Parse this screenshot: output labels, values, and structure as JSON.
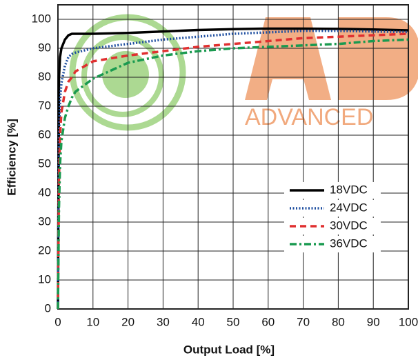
{
  "chart_data": {
    "type": "line",
    "xlabel": "Output Load [%]",
    "ylabel": "Efficiency [%]",
    "watermark": "ADVANCED",
    "x": [
      0,
      0.3,
      0.6,
      1,
      2,
      3,
      4,
      5,
      10,
      20,
      30,
      40,
      50,
      60,
      70,
      80,
      90,
      100
    ],
    "series": [
      {
        "name": "18VDC",
        "color": "#000000",
        "style": "solid",
        "values": [
          0,
          80,
          87,
          90,
          93,
          94.5,
          95,
          95,
          95,
          95.3,
          95.8,
          96.3,
          96.6,
          96.8,
          96.8,
          96.7,
          96.5,
          96.2
        ]
      },
      {
        "name": "24VDC",
        "color": "#1f4fa0",
        "style": "dotted",
        "values": [
          0,
          60,
          72,
          78,
          84,
          87,
          88,
          88.5,
          90,
          91.5,
          93,
          94,
          95,
          95.5,
          96,
          96,
          95.8,
          95.6
        ]
      },
      {
        "name": "30VDC",
        "color": "#e03030",
        "style": "dashed",
        "values": [
          0,
          45,
          60,
          68,
          75,
          78.5,
          80,
          82,
          85.5,
          87.5,
          89,
          90.5,
          91.5,
          92.5,
          93.5,
          94,
          94.5,
          95
        ]
      },
      {
        "name": "36VDC",
        "color": "#1a9a50",
        "style": "dashdot",
        "values": [
          0,
          35,
          50,
          58,
          66,
          70,
          73,
          75,
          79.5,
          85,
          87.5,
          89,
          90,
          90.5,
          91,
          91.5,
          92.5,
          93
        ]
      }
    ],
    "xlim": [
      0,
      100
    ],
    "xticks": [
      0,
      10,
      20,
      30,
      40,
      50,
      60,
      70,
      80,
      90,
      100
    ],
    "ylim": [
      0,
      105
    ],
    "yticks": [
      0,
      10,
      20,
      30,
      40,
      50,
      60,
      70,
      80,
      90,
      100
    ],
    "grid": true,
    "legend": "lower right"
  }
}
